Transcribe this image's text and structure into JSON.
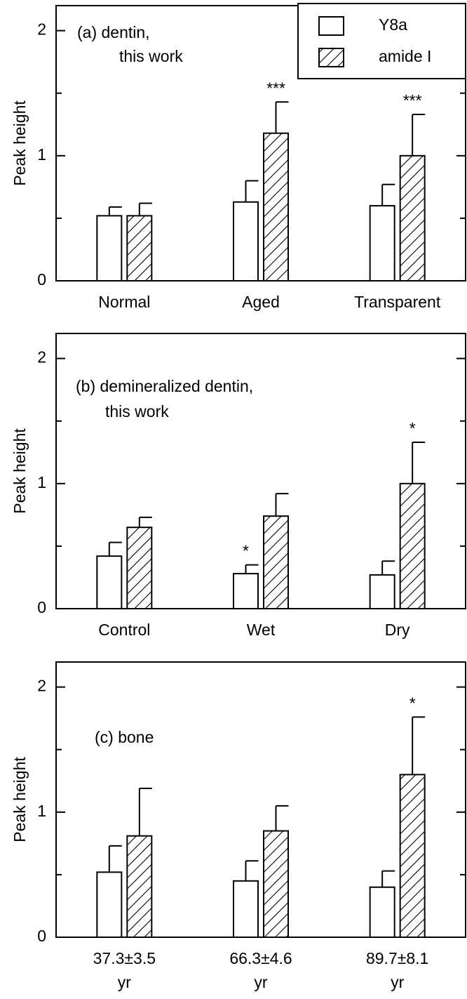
{
  "chart_data": [
    {
      "type": "bar",
      "title_lines": [
        "(a) dentin,",
        "this work"
      ],
      "ylabel": "Peak height",
      "categories": [
        "Normal",
        "Aged",
        "Transparent"
      ],
      "series": [
        {
          "name": "Y8a",
          "color": "#ffffff",
          "hatch": false,
          "values": [
            0.52,
            0.63,
            0.6
          ],
          "errors": [
            0.07,
            0.17,
            0.17
          ],
          "annotations": [
            null,
            null,
            null
          ]
        },
        {
          "name": "amide I",
          "color": "#ffffff",
          "hatch": true,
          "values": [
            0.52,
            1.18,
            1.0
          ],
          "errors": [
            0.1,
            0.25,
            0.33
          ],
          "annotations": [
            null,
            "***",
            "***"
          ]
        }
      ],
      "ylim": [
        0,
        2.2
      ],
      "yticks": [
        0,
        1,
        2
      ],
      "minor_yticks": [
        0.5,
        1.5
      ],
      "legend": "upper right"
    },
    {
      "type": "bar",
      "title_lines": [
        "(b) demineralized dentin,",
        "this work"
      ],
      "ylabel": "Peak height",
      "categories": [
        "Control",
        "Wet",
        "Dry"
      ],
      "series": [
        {
          "name": "Y8a",
          "color": "#ffffff",
          "hatch": false,
          "values": [
            0.42,
            0.28,
            0.27
          ],
          "errors": [
            0.11,
            0.07,
            0.11
          ],
          "annotations": [
            null,
            "*",
            null
          ]
        },
        {
          "name": "amide I",
          "color": "#ffffff",
          "hatch": true,
          "values": [
            0.65,
            0.74,
            1.0
          ],
          "errors": [
            0.08,
            0.18,
            0.33
          ],
          "annotations": [
            null,
            null,
            "*"
          ]
        }
      ],
      "ylim": [
        0,
        2.2
      ],
      "yticks": [
        0,
        1,
        2
      ],
      "minor_yticks": [
        0.5,
        1.5
      ]
    },
    {
      "type": "bar",
      "title_lines": [
        "(c) bone"
      ],
      "ylabel": "Peak height",
      "categories": [
        "37.3±3.5 yr",
        "66.3±4.6 yr",
        "89.7±8.1 yr"
      ],
      "series": [
        {
          "name": "Y8a",
          "color": "#ffffff",
          "hatch": false,
          "values": [
            0.52,
            0.45,
            0.4
          ],
          "errors": [
            0.21,
            0.16,
            0.13
          ],
          "annotations": [
            null,
            null,
            null
          ]
        },
        {
          "name": "amide I",
          "color": "#ffffff",
          "hatch": true,
          "values": [
            0.81,
            0.85,
            1.3
          ],
          "errors": [
            0.38,
            0.2,
            0.46
          ],
          "annotations": [
            null,
            null,
            "*"
          ]
        }
      ],
      "ylim": [
        0,
        2.2
      ],
      "yticks": [
        0,
        1,
        2
      ],
      "minor_yticks": [
        0.5,
        1.5
      ]
    }
  ]
}
